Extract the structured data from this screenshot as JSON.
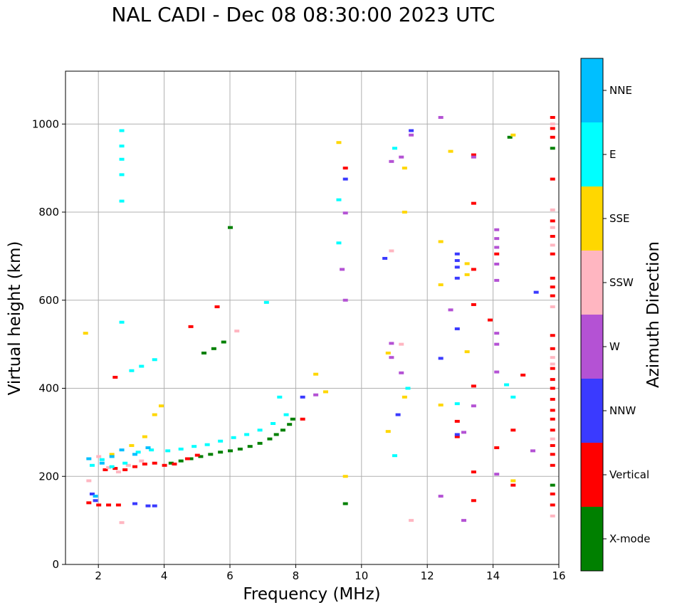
{
  "chart_data": {
    "type": "scatter",
    "title": "NAL CADI - Dec 08 08:30:00 2023 UTC",
    "xlabel": "Frequency (MHz)",
    "ylabel": "Virtual height (km)",
    "xlim": [
      1,
      16
    ],
    "ylim": [
      0,
      1120
    ],
    "xticks": [
      2,
      4,
      6,
      8,
      10,
      12,
      14,
      16
    ],
    "yticks": [
      0,
      200,
      400,
      600,
      800,
      1000
    ],
    "grid": true,
    "colorbar": {
      "label": "Azimuth Direction",
      "categories": [
        {
          "name": "X-mode",
          "color": "#008000"
        },
        {
          "name": "Vertical",
          "color": "#ff0000"
        },
        {
          "name": "NNW",
          "color": "#3a3aff"
        },
        {
          "name": "W",
          "color": "#b452d4"
        },
        {
          "name": "SSW",
          "color": "#ffb6c1"
        },
        {
          "name": "SSE",
          "color": "#ffd700"
        },
        {
          "name": "E",
          "color": "#00ffff"
        },
        {
          "name": "NNE",
          "color": "#00bfff"
        }
      ]
    },
    "series": [
      {
        "name": "X-mode",
        "points": [
          [
            4.2,
            230
          ],
          [
            4.5,
            235
          ],
          [
            4.8,
            240
          ],
          [
            5.1,
            245
          ],
          [
            5.4,
            250
          ],
          [
            5.7,
            255
          ],
          [
            6.0,
            258
          ],
          [
            6.3,
            262
          ],
          [
            6.6,
            268
          ],
          [
            6.9,
            275
          ],
          [
            7.2,
            285
          ],
          [
            7.4,
            295
          ],
          [
            7.6,
            305
          ],
          [
            7.8,
            318
          ],
          [
            7.9,
            330
          ],
          [
            5.2,
            480
          ],
          [
            5.5,
            490
          ],
          [
            5.8,
            505
          ],
          [
            6.0,
            765
          ],
          [
            9.5,
            138
          ],
          [
            14.5,
            970
          ],
          [
            15.8,
            180
          ],
          [
            15.8,
            945
          ]
        ]
      },
      {
        "name": "Vertical",
        "points": [
          [
            1.7,
            140
          ],
          [
            2.0,
            135
          ],
          [
            2.3,
            135
          ],
          [
            2.6,
            135
          ],
          [
            2.2,
            215
          ],
          [
            2.5,
            218
          ],
          [
            2.8,
            215
          ],
          [
            3.1,
            222
          ],
          [
            3.4,
            228
          ],
          [
            3.7,
            230
          ],
          [
            4.0,
            225
          ],
          [
            4.3,
            228
          ],
          [
            4.7,
            240
          ],
          [
            5.0,
            248
          ],
          [
            2.5,
            425
          ],
          [
            4.8,
            540
          ],
          [
            5.6,
            585
          ],
          [
            8.2,
            330
          ],
          [
            9.5,
            900
          ],
          [
            12.9,
            290
          ],
          [
            12.9,
            325
          ],
          [
            13.4,
            930
          ],
          [
            13.4,
            820
          ],
          [
            13.4,
            670
          ],
          [
            13.4,
            590
          ],
          [
            13.4,
            405
          ],
          [
            13.4,
            210
          ],
          [
            13.4,
            145
          ],
          [
            13.9,
            555
          ],
          [
            14.1,
            705
          ],
          [
            14.1,
            265
          ],
          [
            14.6,
            305
          ],
          [
            14.6,
            180
          ],
          [
            14.9,
            430
          ],
          [
            15.8,
            1015
          ],
          [
            15.8,
            990
          ],
          [
            15.8,
            970
          ],
          [
            15.8,
            875
          ],
          [
            15.8,
            780
          ],
          [
            15.8,
            745
          ],
          [
            15.8,
            705
          ],
          [
            15.8,
            650
          ],
          [
            15.8,
            630
          ],
          [
            15.8,
            610
          ],
          [
            15.8,
            520
          ],
          [
            15.8,
            490
          ],
          [
            15.8,
            445
          ],
          [
            15.8,
            420
          ],
          [
            15.8,
            400
          ],
          [
            15.8,
            375
          ],
          [
            15.8,
            350
          ],
          [
            15.8,
            330
          ],
          [
            15.8,
            305
          ],
          [
            15.8,
            270
          ],
          [
            15.8,
            250
          ],
          [
            15.8,
            225
          ],
          [
            15.8,
            160
          ],
          [
            15.8,
            135
          ]
        ]
      },
      {
        "name": "NNW",
        "points": [
          [
            1.8,
            160
          ],
          [
            1.9,
            145
          ],
          [
            3.1,
            138
          ],
          [
            3.5,
            133
          ],
          [
            3.7,
            133
          ],
          [
            8.2,
            380
          ],
          [
            9.5,
            875
          ],
          [
            10.7,
            695
          ],
          [
            11.1,
            340
          ],
          [
            11.5,
            985
          ],
          [
            12.4,
            468
          ],
          [
            12.9,
            705
          ],
          [
            12.9,
            690
          ],
          [
            12.9,
            675
          ],
          [
            12.9,
            650
          ],
          [
            12.9,
            535
          ],
          [
            12.9,
            295
          ],
          [
            15.3,
            618
          ]
        ]
      },
      {
        "name": "W",
        "points": [
          [
            8.6,
            385
          ],
          [
            9.4,
            670
          ],
          [
            9.5,
            600
          ],
          [
            9.5,
            798
          ],
          [
            10.9,
            915
          ],
          [
            10.9,
            502
          ],
          [
            10.9,
            470
          ],
          [
            11.2,
            925
          ],
          [
            11.2,
            435
          ],
          [
            11.5,
            975
          ],
          [
            12.4,
            1015
          ],
          [
            12.4,
            155
          ],
          [
            12.7,
            578
          ],
          [
            13.1,
            300
          ],
          [
            13.1,
            100
          ],
          [
            13.4,
            925
          ],
          [
            13.4,
            360
          ],
          [
            14.1,
            760
          ],
          [
            14.1,
            740
          ],
          [
            14.1,
            720
          ],
          [
            14.1,
            682
          ],
          [
            14.1,
            645
          ],
          [
            14.1,
            525
          ],
          [
            14.1,
            500
          ],
          [
            14.1,
            437
          ],
          [
            14.1,
            205
          ],
          [
            15.2,
            258
          ]
        ]
      },
      {
        "name": "SSW",
        "points": [
          [
            1.7,
            190
          ],
          [
            2.0,
            245
          ],
          [
            2.3,
            220
          ],
          [
            2.6,
            210
          ],
          [
            2.9,
            225
          ],
          [
            3.3,
            235
          ],
          [
            2.7,
            95
          ],
          [
            6.2,
            530
          ],
          [
            10.9,
            712
          ],
          [
            11.2,
            500
          ],
          [
            11.5,
            100
          ],
          [
            15.8,
            1000
          ],
          [
            15.8,
            805
          ],
          [
            15.8,
            765
          ],
          [
            15.8,
            725
          ],
          [
            15.8,
            585
          ],
          [
            15.8,
            470
          ],
          [
            15.8,
            455
          ],
          [
            15.8,
            285
          ],
          [
            15.8,
            110
          ]
        ]
      },
      {
        "name": "SSE",
        "points": [
          [
            1.6,
            525
          ],
          [
            2.4,
            250
          ],
          [
            3.0,
            270
          ],
          [
            3.4,
            290
          ],
          [
            3.7,
            340
          ],
          [
            3.9,
            360
          ],
          [
            8.6,
            432
          ],
          [
            8.9,
            392
          ],
          [
            9.3,
            958
          ],
          [
            9.5,
            200
          ],
          [
            10.8,
            480
          ],
          [
            10.8,
            302
          ],
          [
            11.3,
            900
          ],
          [
            11.3,
            800
          ],
          [
            11.3,
            380
          ],
          [
            12.4,
            733
          ],
          [
            12.4,
            635
          ],
          [
            12.4,
            362
          ],
          [
            12.7,
            938
          ],
          [
            13.2,
            483
          ],
          [
            13.2,
            683
          ],
          [
            13.2,
            658
          ],
          [
            14.6,
            975
          ],
          [
            14.6,
            190
          ]
        ]
      },
      {
        "name": "E",
        "points": [
          [
            1.8,
            225
          ],
          [
            2.1,
            238
          ],
          [
            2.4,
            222
          ],
          [
            2.8,
            230
          ],
          [
            3.2,
            255
          ],
          [
            3.6,
            260
          ],
          [
            4.1,
            258
          ],
          [
            4.5,
            262
          ],
          [
            4.9,
            268
          ],
          [
            5.3,
            272
          ],
          [
            5.7,
            280
          ],
          [
            6.1,
            288
          ],
          [
            6.5,
            295
          ],
          [
            6.9,
            305
          ],
          [
            7.3,
            320
          ],
          [
            7.7,
            340
          ],
          [
            7.5,
            380
          ],
          [
            2.7,
            985
          ],
          [
            2.7,
            950
          ],
          [
            2.7,
            920
          ],
          [
            2.7,
            885
          ],
          [
            2.7,
            825
          ],
          [
            2.7,
            550
          ],
          [
            3.0,
            440
          ],
          [
            3.3,
            450
          ],
          [
            3.7,
            465
          ],
          [
            7.1,
            595
          ],
          [
            9.3,
            828
          ],
          [
            9.3,
            730
          ],
          [
            11.0,
            945
          ],
          [
            11.0,
            247
          ],
          [
            11.4,
            400
          ],
          [
            14.4,
            408
          ],
          [
            14.6,
            380
          ],
          [
            12.9,
            365
          ]
        ]
      },
      {
        "name": "NNE",
        "points": [
          [
            1.7,
            240
          ],
          [
            1.9,
            155
          ],
          [
            2.1,
            230
          ],
          [
            2.4,
            245
          ],
          [
            2.7,
            260
          ],
          [
            3.1,
            250
          ],
          [
            3.5,
            265
          ]
        ]
      }
    ]
  }
}
